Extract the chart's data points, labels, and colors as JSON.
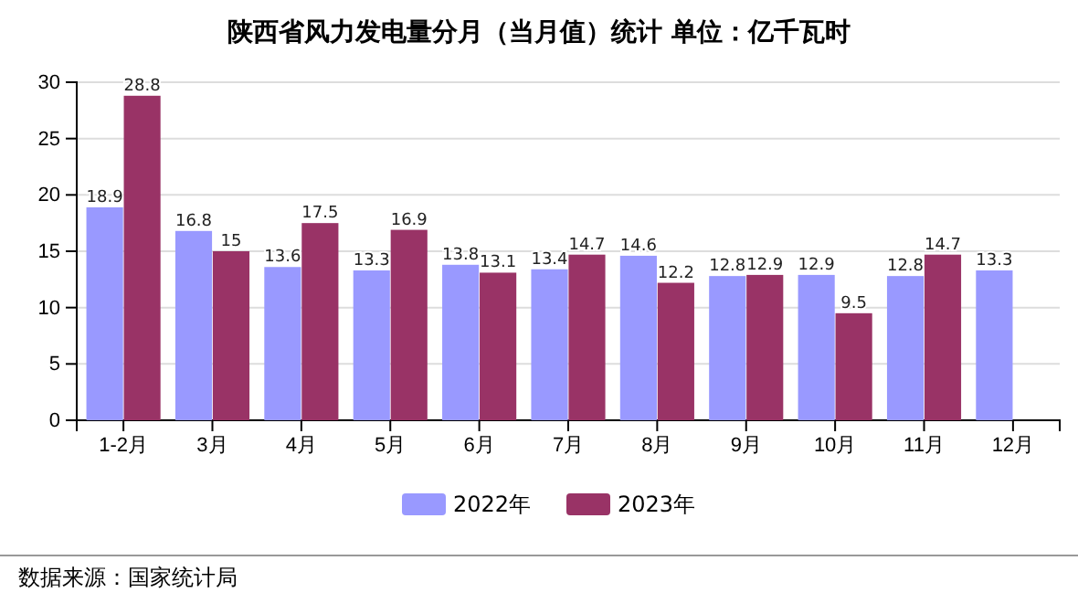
{
  "chart_data": {
    "type": "bar",
    "title": "陕西省风力发电量分月（当月值）统计 单位：亿千瓦时",
    "categories": [
      "1-2月",
      "3月",
      "4月",
      "5月",
      "6月",
      "7月",
      "8月",
      "9月",
      "10月",
      "11月",
      "12月"
    ],
    "series": [
      {
        "name": "2022年",
        "color": "#9999ff",
        "values": [
          18.9,
          16.8,
          13.6,
          13.3,
          13.8,
          13.4,
          14.6,
          12.8,
          12.9,
          12.8,
          13.3
        ]
      },
      {
        "name": "2023年",
        "color": "#993366",
        "values": [
          28.8,
          15,
          17.5,
          16.9,
          13.1,
          14.7,
          12.2,
          12.9,
          9.5,
          14.7,
          null
        ]
      }
    ],
    "ylim": [
      0,
      30
    ],
    "yticks": [
      0,
      5,
      10,
      15,
      20,
      25,
      30
    ],
    "grid": "y",
    "legend": "bottom",
    "data_labels": true,
    "annotations": [
      "数据来源：国家统计局"
    ]
  }
}
